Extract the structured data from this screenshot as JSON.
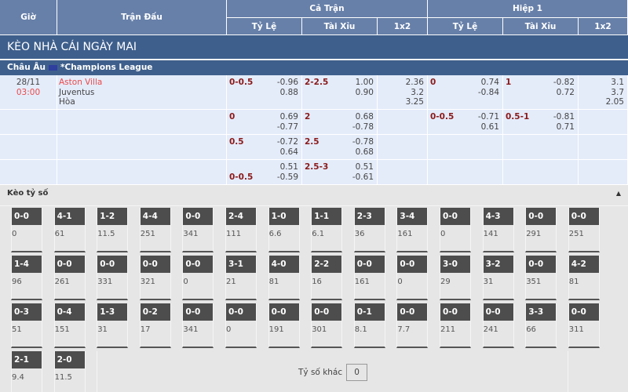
{
  "header": {
    "gio": "Giờ",
    "tran_dau": "Trận Đấu",
    "ca_tran": "Cả Trận",
    "hiep1": "Hiệp 1",
    "ty_le": "Tỷ Lệ",
    "tai_xiu": "Tài Xỉu",
    "x12": "1x2"
  },
  "title": "KÈO NHÀ CÁI NGÀY MAI",
  "league": {
    "region": "Châu Âu",
    "name": "*Champions League"
  },
  "match": {
    "date": "28/11",
    "time": "03:00",
    "home": "Aston Villa",
    "away": "Juventus",
    "draw": "Hòa"
  },
  "rows": [
    {
      "ft_hdp": "0-0.5",
      "ft_hdp_o": [
        "-0.96",
        "0.88"
      ],
      "ft_ou": "2-2.5",
      "ft_ou_o": [
        "1.00",
        "0.90"
      ],
      "ft_1x2": [
        "2.36",
        "3.2",
        "3.25"
      ],
      "h1_hdp": "0",
      "h1_hdp_o": [
        "0.74",
        "-0.84"
      ],
      "h1_ou": "1",
      "h1_ou_o": [
        "-0.82",
        "0.72"
      ],
      "h1_1x2": [
        "3.1",
        "3.7",
        "2.05"
      ]
    },
    {
      "ft_hdp": "0",
      "ft_hdp_o": [
        "0.69",
        "-0.77"
      ],
      "ft_ou": "2",
      "ft_ou_o": [
        "0.68",
        "-0.78"
      ],
      "ft_1x2": [],
      "h1_hdp": "0-0.5",
      "h1_hdp_o": [
        "-0.71",
        "0.61"
      ],
      "h1_ou": "0.5-1",
      "h1_ou_o": [
        "-0.81",
        "0.71"
      ],
      "h1_1x2": []
    },
    {
      "ft_hdp": "0.5",
      "ft_hdp_o": [
        "-0.72",
        "0.64"
      ],
      "ft_ou": "2.5",
      "ft_ou_o": [
        "-0.78",
        "0.68"
      ],
      "ft_1x2": [],
      "h1_hdp": "",
      "h1_hdp_o": [],
      "h1_ou": "",
      "h1_ou_o": [],
      "h1_1x2": []
    },
    {
      "ft_hdp": "0-0.5",
      "ft_hdp_bottom": true,
      "ft_hdp_o": [
        "0.51",
        "-0.59"
      ],
      "ft_ou": "2.5-3",
      "ft_ou_o": [
        "0.51",
        "-0.61"
      ],
      "ft_1x2": [],
      "h1_hdp": "",
      "h1_hdp_o": [],
      "h1_ou": "",
      "h1_ou_o": [],
      "h1_1x2": []
    }
  ],
  "keo_ty_so": {
    "title": "Kèo tỷ số",
    "collapse_icon": "triangle-up-icon",
    "scores": [
      [
        "0-0",
        "0"
      ],
      [
        "4-1",
        "61"
      ],
      [
        "1-2",
        "11.5"
      ],
      [
        "4-4",
        "251"
      ],
      [
        "0-0",
        "341"
      ],
      [
        "2-4",
        "111"
      ],
      [
        "1-0",
        "6.6"
      ],
      [
        "1-1",
        "6.1"
      ],
      [
        "2-3",
        "36"
      ],
      [
        "3-4",
        "161"
      ],
      [
        "0-0",
        "0"
      ],
      [
        "4-3",
        "141"
      ],
      [
        "0-0",
        "291"
      ],
      [
        "0-0",
        "251"
      ],
      [
        "1-4",
        "96"
      ],
      [
        "0-0",
        "261"
      ],
      [
        "0-0",
        "331"
      ],
      [
        "0-0",
        "321"
      ],
      [
        "0-0",
        "0"
      ],
      [
        "3-1",
        "21"
      ],
      [
        "4-0",
        "81"
      ],
      [
        "2-2",
        "16"
      ],
      [
        "0-0",
        "161"
      ],
      [
        "0-0",
        "0"
      ],
      [
        "3-0",
        "29"
      ],
      [
        "3-2",
        "31"
      ],
      [
        "0-0",
        "351"
      ],
      [
        "4-2",
        "81"
      ],
      [
        "0-3",
        "51"
      ],
      [
        "0-4",
        "151"
      ],
      [
        "1-3",
        "31"
      ],
      [
        "0-2",
        "17"
      ],
      [
        "0-0",
        "341"
      ],
      [
        "0-0",
        "0"
      ],
      [
        "0-0",
        "191"
      ],
      [
        "0-0",
        "301"
      ],
      [
        "0-1",
        "8.1"
      ],
      [
        "0-0",
        "7.7"
      ],
      [
        "0-0",
        "211"
      ],
      [
        "0-0",
        "241"
      ],
      [
        "3-3",
        "66"
      ],
      [
        "0-0",
        "311"
      ],
      [
        "2-1",
        "9.4"
      ],
      [
        "2-0",
        "11.5"
      ]
    ],
    "other_label": "Tỷ số khác",
    "other_value": "0"
  }
}
